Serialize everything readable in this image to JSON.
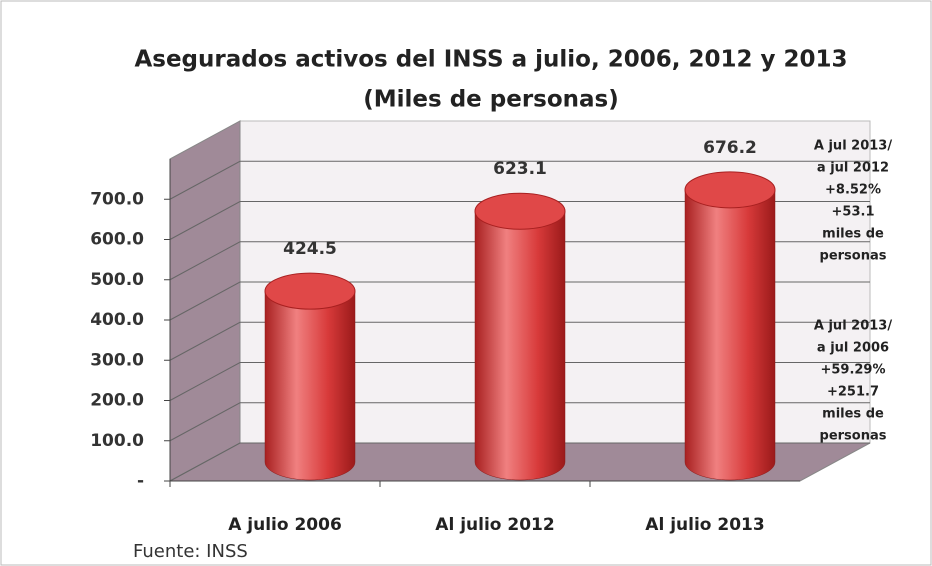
{
  "chart_data": {
    "type": "bar",
    "title": "Asegurados activos del INSS  a  julio,  2006,  2012 y  2013",
    "subtitle": "(Miles de personas)",
    "categories": [
      "A julio 2006",
      "Al julio 2012",
      "Al julio 2013"
    ],
    "values": [
      424.5,
      623.1,
      676.2
    ],
    "color": "#d83a3a",
    "ylim": [
      0,
      800
    ],
    "yticks": [
      {
        "value": 0,
        "label": "-"
      },
      {
        "value": 100,
        "label": "100.0"
      },
      {
        "value": 200,
        "label": "200.0"
      },
      {
        "value": 300,
        "label": "300.0"
      },
      {
        "value": 400,
        "label": "400.0"
      },
      {
        "value": 500,
        "label": "500.0"
      },
      {
        "value": 600,
        "label": "600.0"
      },
      {
        "value": 700,
        "label": "700.0"
      }
    ],
    "grid": true,
    "annotations": [
      [
        "A jul 2013/",
        "a jul 2012",
        "+8.52%",
        "+53.1",
        "miles de",
        "personas"
      ],
      [
        "A  jul 2013/",
        "a jul 2006",
        "+59.29%",
        "+251.7",
        "miles de",
        "personas"
      ]
    ],
    "source": "Fuente: INSS"
  }
}
